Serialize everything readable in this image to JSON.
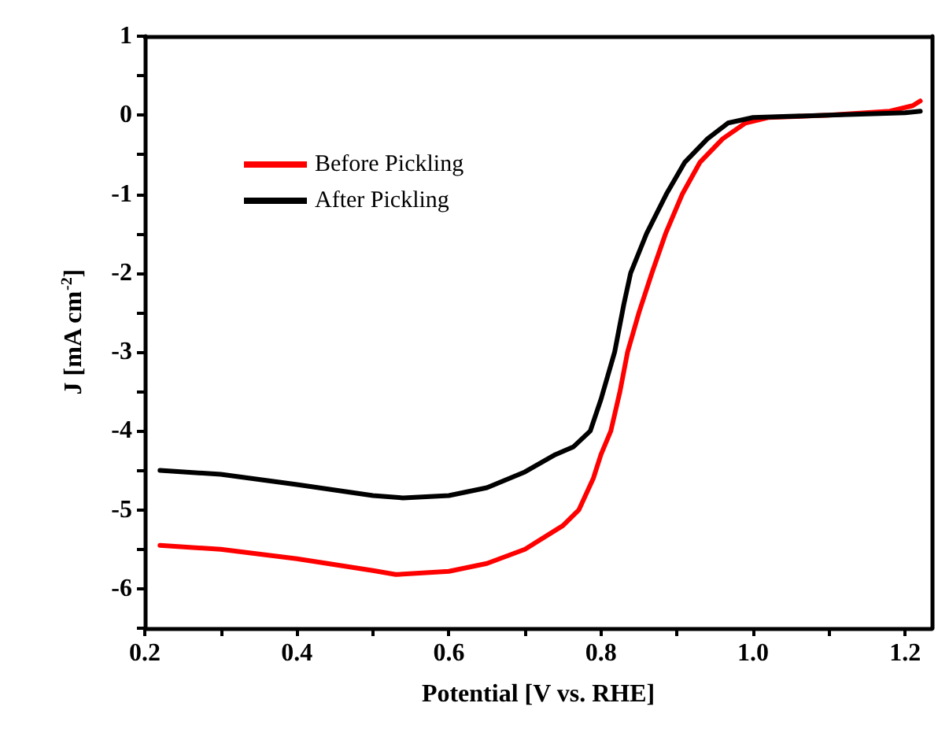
{
  "chart_data": {
    "type": "line",
    "xlabel": "Potential [V vs. RHE]",
    "ylabel": "J [mA cm$^{-2}$]",
    "xlim": [
      0.2,
      1.235
    ],
    "xticks": [
      {
        "value": 0.2,
        "label": "0.2"
      },
      {
        "value": 0.3,
        "label": null
      },
      {
        "value": 0.4,
        "label": "0.4"
      },
      {
        "value": 0.5,
        "label": null
      },
      {
        "value": 0.6,
        "label": "0.6"
      },
      {
        "value": 0.7,
        "label": null
      },
      {
        "value": 0.8,
        "label": "0.8"
      },
      {
        "value": 0.9,
        "label": null
      },
      {
        "value": 1.0,
        "label": "1.0"
      },
      {
        "value": 1.1,
        "label": null
      },
      {
        "value": 1.2,
        "label": "1.2"
      }
    ],
    "ylim": [
      -6.5,
      1
    ],
    "yticks": [
      {
        "value": -6.5,
        "label": null
      },
      -6,
      {
        "value": -5.5,
        "label": null
      },
      -5,
      {
        "value": -4.5,
        "label": null
      },
      -4,
      {
        "value": -3.5,
        "label": null
      },
      -3,
      {
        "value": -2.5,
        "label": null
      },
      -2,
      {
        "value": -1.5,
        "label": null
      },
      -1,
      {
        "value": -0.5,
        "label": null
      },
      0,
      {
        "value": 0.5,
        "label": null
      },
      1
    ],
    "grid": false,
    "legend": "top left",
    "marker": "none",
    "line_style": "solid",
    "series": [
      {
        "name": "Before Pickling",
        "color": "#ff0000",
        "x": [
          0.22,
          0.3,
          0.4,
          0.5,
          0.53,
          0.6,
          0.65,
          0.7,
          0.75,
          0.771,
          0.79,
          0.8,
          0.813,
          0.825,
          0.835,
          0.85,
          0.867,
          0.885,
          0.907,
          0.93,
          0.96,
          0.99,
          1.02,
          1.1,
          1.18,
          1.21,
          1.22
        ],
        "values": [
          -5.45,
          -5.5,
          -5.62,
          -5.77,
          -5.82,
          -5.78,
          -5.68,
          -5.5,
          -5.2,
          -5.0,
          -4.6,
          -4.3,
          -4.0,
          -3.5,
          -3.0,
          -2.5,
          -2.0,
          -1.5,
          -1.0,
          -0.6,
          -0.3,
          -0.1,
          -0.03,
          0,
          0.05,
          0.12,
          0.18
        ]
      },
      {
        "name": "After Pickling",
        "color": "#000000",
        "x": [
          0.22,
          0.3,
          0.4,
          0.5,
          0.54,
          0.6,
          0.65,
          0.7,
          0.74,
          0.764,
          0.786,
          0.8,
          0.818,
          0.83,
          0.839,
          0.86,
          0.886,
          0.91,
          0.94,
          0.967,
          1.0,
          1.1,
          1.2,
          1.22
        ],
        "values": [
          -4.5,
          -4.55,
          -4.68,
          -4.82,
          -4.85,
          -4.82,
          -4.72,
          -4.52,
          -4.3,
          -4.2,
          -4.0,
          -3.6,
          -3.0,
          -2.4,
          -2.0,
          -1.5,
          -1.0,
          -0.6,
          -0.3,
          -0.1,
          -0.03,
          0,
          0.03,
          0.05
        ]
      }
    ]
  }
}
